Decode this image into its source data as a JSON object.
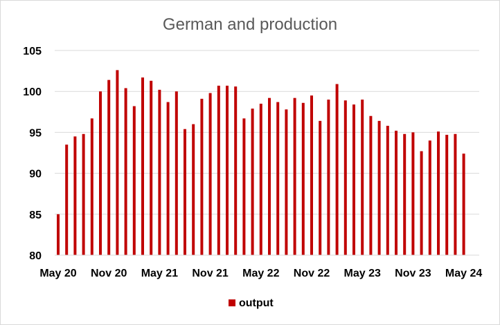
{
  "chart_data": {
    "type": "bar",
    "title": "German and production",
    "ylim": [
      80,
      105
    ],
    "yticks": [
      80,
      85,
      90,
      95,
      100,
      105
    ],
    "grid": true,
    "legend_position": "bottom",
    "color": "#c00000",
    "categories": [
      "May 20",
      "Jun 20",
      "Jul 20",
      "Aug 20",
      "Sep 20",
      "Oct 20",
      "Nov 20",
      "Dec 20",
      "Jan 21",
      "Feb 21",
      "Mar 21",
      "Apr 21",
      "May 21",
      "Jun 21",
      "Jul 21",
      "Aug 21",
      "Sep 21",
      "Oct 21",
      "Nov 21",
      "Dec 21",
      "Jan 22",
      "Feb 22",
      "Mar 22",
      "Apr 22",
      "May 22",
      "Jun 22",
      "Jul 22",
      "Aug 22",
      "Sep 22",
      "Oct 22",
      "Nov 22",
      "Dec 22",
      "Jan 23",
      "Feb 23",
      "Mar 23",
      "Apr 23",
      "May 23",
      "Jun 23",
      "Jul 23",
      "Aug 23",
      "Sep 23",
      "Oct 23",
      "Nov 23",
      "Dec 23",
      "Jan 24",
      "Feb 24",
      "Mar 24",
      "Apr 24",
      "May 24"
    ],
    "xtick_labels": [
      "May 20",
      "Nov 20",
      "May 21",
      "Nov 21",
      "May 22",
      "Nov 22",
      "May 23",
      "Nov 23",
      "May 24"
    ],
    "series": [
      {
        "name": "output",
        "values": [
          85.0,
          93.5,
          94.5,
          94.8,
          96.7,
          100.0,
          101.4,
          102.6,
          100.4,
          98.2,
          101.7,
          101.3,
          100.2,
          98.7,
          100.0,
          95.4,
          96.0,
          99.1,
          99.8,
          100.7,
          100.7,
          100.6,
          96.7,
          97.9,
          98.5,
          99.2,
          98.7,
          97.8,
          99.2,
          98.6,
          99.5,
          96.4,
          99.0,
          100.9,
          98.9,
          98.4,
          99.0,
          97.0,
          96.4,
          95.8,
          95.2,
          94.8,
          95.0,
          92.7,
          94.0,
          95.1,
          94.7,
          94.8,
          92.4
        ]
      }
    ]
  }
}
